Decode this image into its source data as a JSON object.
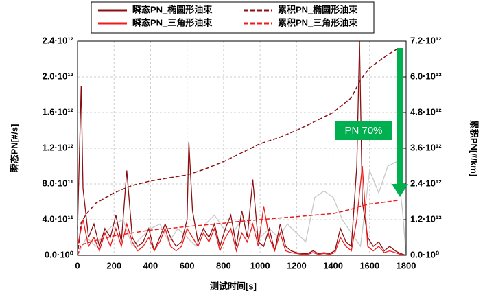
{
  "chart_data": {
    "type": "line",
    "xlabel": "测试时间[s]",
    "ylabel": "瞬态PN[#/s]",
    "y2label": "累积PN[#/km]",
    "annotation": "PN 70%",
    "grid": true,
    "legend": "top",
    "xlim": [
      0,
      1800
    ],
    "xticks": [
      0,
      200,
      400,
      600,
      800,
      1000,
      1200,
      1400,
      1600,
      1800
    ],
    "ylim": [
      0,
      2400000000000.0
    ],
    "yticks": [
      {
        "value": 0,
        "label": "0.0·10⁰"
      },
      {
        "value": 400000000000.0,
        "label": "4.0·10¹¹"
      },
      {
        "value": 800000000000.0,
        "label": "8.0·10¹¹"
      },
      {
        "value": 1200000000000.0,
        "label": "1.2·10¹²"
      },
      {
        "value": 1600000000000.0,
        "label": "1.6·10¹²"
      },
      {
        "value": 2000000000000.0,
        "label": "2.0·10¹²"
      },
      {
        "value": 2400000000000.0,
        "label": "2.4·10¹²"
      }
    ],
    "y2lim": [
      0,
      7200000000000.0
    ],
    "y2ticks": [
      {
        "value": 0,
        "label": "0.0·10⁰"
      },
      {
        "value": 1200000000000.0,
        "label": "1.2·10¹²"
      },
      {
        "value": 2400000000000.0,
        "label": "2.4·10¹²"
      },
      {
        "value": 3600000000000.0,
        "label": "3.6·10¹²"
      },
      {
        "value": 4800000000000.0,
        "label": "4.8·10¹²"
      },
      {
        "value": 6000000000000.0,
        "label": "6.0·10¹²"
      },
      {
        "value": 7200000000000.0,
        "label": "7.2·10¹²"
      }
    ],
    "series": [
      {
        "name": "瞬态PN_椭圆形油束",
        "color": "#8b0f12",
        "style": "solid",
        "x": [
          0,
          20,
          30,
          60,
          90,
          120,
          150,
          180,
          210,
          240,
          270,
          300,
          330,
          360,
          390,
          420,
          450,
          480,
          510,
          540,
          570,
          600,
          610,
          630,
          660,
          690,
          720,
          750,
          780,
          810,
          840,
          870,
          900,
          930,
          960,
          990,
          1020,
          1050,
          1080,
          1110,
          1140,
          1170,
          1200,
          1230,
          1260,
          1290,
          1320,
          1350,
          1380,
          1410,
          1440,
          1470,
          1500,
          1530,
          1545,
          1560,
          1590,
          1620,
          1650,
          1680,
          1710,
          1740,
          1770,
          1800
        ],
        "values": [
          300000000000.0,
          1900000000000.0,
          750000000000.0,
          200000000000.0,
          350000000000.0,
          100000000000.0,
          300000000000.0,
          200000000000.0,
          450000000000.0,
          150000000000.0,
          950000000000.0,
          200000000000.0,
          100000000000.0,
          150000000000.0,
          300000000000.0,
          50000000000.0,
          200000000000.0,
          350000000000.0,
          200000000000.0,
          100000000000.0,
          150000000000.0,
          400000000000.0,
          1270000000000.0,
          500000000000.0,
          150000000000.0,
          300000000000.0,
          200000000000.0,
          350000000000.0,
          100000000000.0,
          300000000000.0,
          450000000000.0,
          100000000000.0,
          500000000000.0,
          200000000000.0,
          850000000000.0,
          150000000000.0,
          100000000000.0,
          300000000000.0,
          50000000000.0,
          350000000000.0,
          100000000000.0,
          50000000000.0,
          30000000000.0,
          20000000000.0,
          20000000000.0,
          50000000000.0,
          20000000000.0,
          30000000000.0,
          20000000000.0,
          50000000000.0,
          300000000000.0,
          150000000000.0,
          100000000000.0,
          1000000000000.0,
          2400000000000.0,
          600000000000.0,
          200000000000.0,
          100000000000.0,
          150000000000.0,
          50000000000.0,
          100000000000.0,
          50000000000.0,
          20000000000.0,
          0
        ]
      },
      {
        "name": "累积PN_椭圆形油束",
        "color": "#8b0f12",
        "style": "dashed",
        "axis": "y2",
        "x": [
          0,
          20,
          50,
          100,
          200,
          300,
          400,
          500,
          600,
          700,
          800,
          900,
          1000,
          1100,
          1200,
          1300,
          1400,
          1500,
          1550,
          1600,
          1700,
          1760
        ],
        "values": [
          0,
          1100000000000.0,
          1400000000000.0,
          1750000000000.0,
          2100000000000.0,
          2350000000000.0,
          2500000000000.0,
          2600000000000.0,
          2700000000000.0,
          2900000000000.0,
          3150000000000.0,
          3450000000000.0,
          3750000000000.0,
          3950000000000.0,
          4200000000000.0,
          4500000000000.0,
          4800000000000.0,
          5300000000000.0,
          5900000000000.0,
          6300000000000.0,
          6750000000000.0,
          6970000000000.0
        ]
      },
      {
        "name": "瞬态PN_三角形油束",
        "color": "#ee1c1c",
        "style": "solid",
        "x": [
          0,
          30,
          60,
          90,
          120,
          150,
          180,
          210,
          240,
          270,
          300,
          330,
          360,
          390,
          420,
          450,
          480,
          510,
          540,
          570,
          600,
          630,
          660,
          690,
          720,
          750,
          780,
          810,
          840,
          870,
          900,
          930,
          960,
          990,
          1020,
          1050,
          1080,
          1110,
          1140,
          1170,
          1200,
          1230,
          1260,
          1290,
          1320,
          1350,
          1380,
          1410,
          1440,
          1470,
          1500,
          1530,
          1560,
          1590,
          1620,
          1650,
          1680,
          1710,
          1740,
          1770,
          1800
        ],
        "values": [
          100000000000.0,
          400000000000.0,
          100000000000.0,
          200000000000.0,
          50000000000.0,
          250000000000.0,
          100000000000.0,
          300000000000.0,
          100000000000.0,
          350000000000.0,
          150000000000.0,
          50000000000.0,
          100000000000.0,
          200000000000.0,
          50000000000.0,
          150000000000.0,
          300000000000.0,
          100000000000.0,
          50000000000.0,
          100000000000.0,
          300000000000.0,
          200000000000.0,
          100000000000.0,
          250000000000.0,
          150000000000.0,
          300000000000.0,
          50000000000.0,
          200000000000.0,
          300000000000.0,
          50000000000.0,
          250000000000.0,
          150000000000.0,
          350000000000.0,
          100000000000.0,
          550000000000.0,
          200000000000.0,
          50000000000.0,
          250000000000.0,
          50000000000.0,
          30000000000.0,
          20000000000.0,
          10000000000.0,
          10000000000.0,
          30000000000.0,
          10000000000.0,
          20000000000.0,
          10000000000.0,
          30000000000.0,
          200000000000.0,
          100000000000.0,
          50000000000.0,
          400000000000.0,
          1000000000000.0,
          100000000000.0,
          50000000000.0,
          100000000000.0,
          30000000000.0,
          50000000000.0,
          30000000000.0,
          10000000000.0,
          0
        ]
      },
      {
        "name": "累积PN_三角形油束",
        "color": "#ee1c1c",
        "style": "dashed",
        "axis": "y2",
        "x": [
          0,
          20,
          100,
          200,
          300,
          400,
          500,
          600,
          700,
          800,
          900,
          1000,
          1100,
          1200,
          1300,
          1400,
          1500,
          1550,
          1600,
          1700,
          1760
        ],
        "values": [
          0,
          350000000000.0,
          500000000000.0,
          650000000000.0,
          750000000000.0,
          850000000000.0,
          900000000000.0,
          970000000000.0,
          1020000000000.0,
          1080000000000.0,
          1150000000000.0,
          1200000000000.0,
          1250000000000.0,
          1300000000000.0,
          1350000000000.0,
          1400000000000.0,
          1550000000000.0,
          1650000000000.0,
          1720000000000.0,
          1800000000000.0,
          1850000000000.0
        ]
      },
      {
        "color": "#c8c8c8",
        "style": "solid",
        "x": [
          0,
          50,
          100,
          150,
          200,
          250,
          300,
          350,
          400,
          450,
          500,
          550,
          600,
          650,
          700,
          750,
          800,
          850,
          900,
          950,
          1000,
          1050,
          1100,
          1150,
          1200,
          1250,
          1300,
          1350,
          1400,
          1450,
          1500,
          1550,
          1600,
          1650,
          1700,
          1750,
          1780,
          1800
        ],
        "values": [
          0,
          200000000000.0,
          100000000000.0,
          250000000000.0,
          350000000000.0,
          400000000000.0,
          100000000000.0,
          200000000000.0,
          300000000000.0,
          350000000000.0,
          150000000000.0,
          300000000000.0,
          200000000000.0,
          100000000000.0,
          350000000000.0,
          450000000000.0,
          300000000000.0,
          250000000000.0,
          400000000000.0,
          350000000000.0,
          200000000000.0,
          300000000000.0,
          200000000000.0,
          350000000000.0,
          250000000000.0,
          150000000000.0,
          650000000000.0,
          720000000000.0,
          650000000000.0,
          400000000000.0,
          250000000000.0,
          100000000000.0,
          950000000000.0,
          700000000000.0,
          1000000000000.0,
          1050000000000.0,
          500000000000.0,
          0
        ]
      }
    ]
  }
}
